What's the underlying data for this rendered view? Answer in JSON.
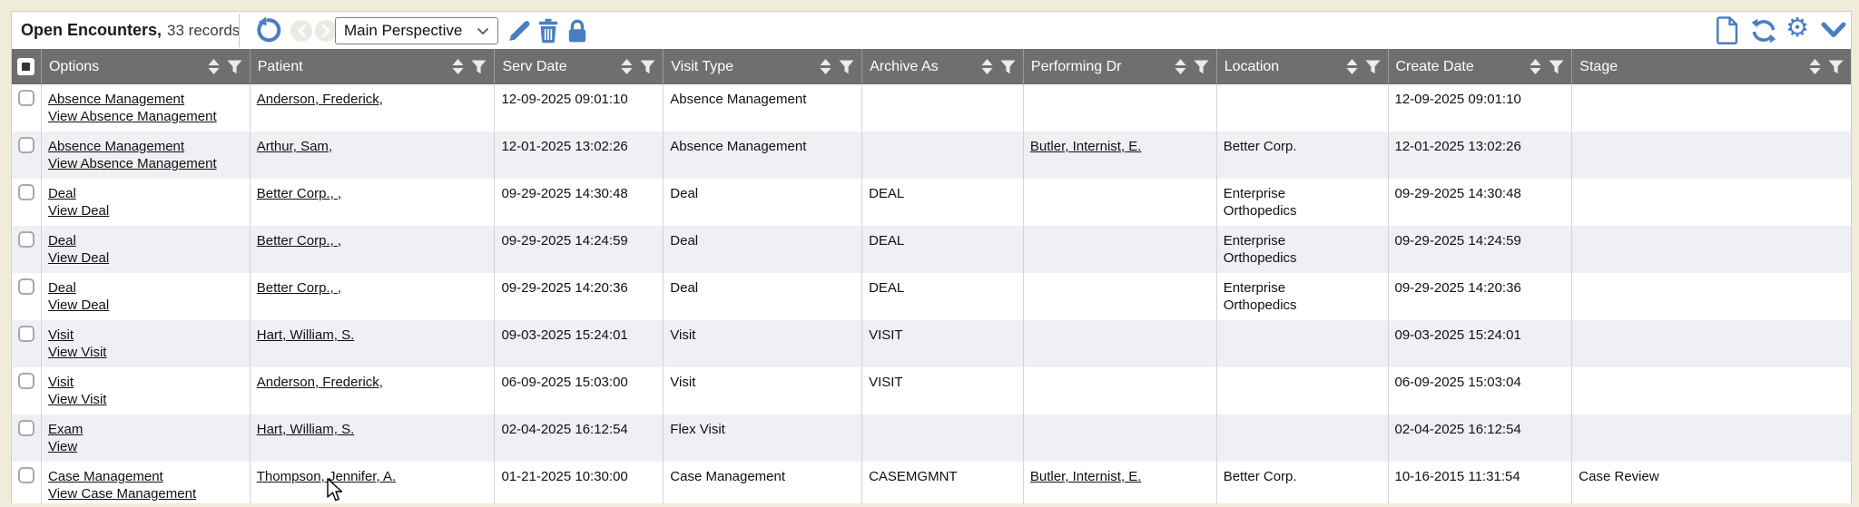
{
  "toolbar": {
    "title": "Open Encounters,",
    "record_count": "33 records",
    "perspective_value": "Main Perspective",
    "left_icon_names": [
      "undo-icon",
      "prev-icon",
      "next-icon"
    ],
    "action_icon_names": [
      "edit-pencil-icon",
      "trash-icon",
      "lock-icon"
    ],
    "right_icon_names": [
      "new-document-icon",
      "refresh-icon",
      "gear-icon",
      "chevron-down-icon"
    ],
    "select_chevron_icon": "chevron-down-small-icon"
  },
  "colors": {
    "accent_blue": "#4a7ec2",
    "header_gray": "#6f6f6f",
    "zebra_row": "#eef0f4",
    "page_background": "#f1ecda"
  },
  "table": {
    "header_icon_names": [
      "sort-icon",
      "filter-icon"
    ],
    "select_all_checkbox": "indeterminate",
    "columns": [
      "Options",
      "Patient",
      "Serv Date",
      "Visit Type",
      "Archive As",
      "Performing Dr",
      "Location",
      "Create Date",
      "Stage"
    ],
    "rows": [
      {
        "options": [
          "Absence Management",
          "View Absence Management"
        ],
        "patient": "Anderson, Frederick,",
        "serv_date": "12-09-2025 09:01:10",
        "visit_type": "Absence Management",
        "archive_as": "",
        "performing_dr": "",
        "location": "",
        "create_date": "12-09-2025 09:01:10",
        "stage": ""
      },
      {
        "options": [
          "Absence Management",
          "View Absence Management"
        ],
        "patient": "Arthur, Sam,",
        "serv_date": "12-01-2025 13:02:26",
        "visit_type": "Absence Management",
        "archive_as": "",
        "performing_dr": "Butler, Internist, E.",
        "location": "Better Corp.",
        "create_date": "12-01-2025 13:02:26",
        "stage": ""
      },
      {
        "options": [
          "Deal",
          "View Deal"
        ],
        "patient": "Better Corp., ,",
        "serv_date": "09-29-2025 14:30:48",
        "visit_type": "Deal",
        "archive_as": "DEAL",
        "performing_dr": "",
        "location": "Enterprise Orthopedics",
        "create_date": "09-29-2025 14:30:48",
        "stage": ""
      },
      {
        "options": [
          "Deal",
          "View Deal"
        ],
        "patient": "Better Corp., ,",
        "serv_date": "09-29-2025 14:24:59",
        "visit_type": "Deal",
        "archive_as": "DEAL",
        "performing_dr": "",
        "location": "Enterprise Orthopedics",
        "create_date": "09-29-2025 14:24:59",
        "stage": ""
      },
      {
        "options": [
          "Deal",
          "View Deal"
        ],
        "patient": "Better Corp., ,",
        "serv_date": "09-29-2025 14:20:36",
        "visit_type": "Deal",
        "archive_as": "DEAL",
        "performing_dr": "",
        "location": "Enterprise Orthopedics",
        "create_date": "09-29-2025 14:20:36",
        "stage": ""
      },
      {
        "options": [
          "Visit",
          "View Visit"
        ],
        "patient": "Hart, William, S.",
        "serv_date": "09-03-2025 15:24:01",
        "visit_type": "Visit",
        "archive_as": "VISIT",
        "performing_dr": "",
        "location": "",
        "create_date": "09-03-2025 15:24:01",
        "stage": ""
      },
      {
        "options": [
          "Visit",
          "View Visit"
        ],
        "patient": "Anderson, Frederick,",
        "serv_date": "06-09-2025 15:03:00",
        "visit_type": "Visit",
        "archive_as": "VISIT",
        "performing_dr": "",
        "location": "",
        "create_date": "06-09-2025 15:03:04",
        "stage": ""
      },
      {
        "options": [
          "Exam",
          "View"
        ],
        "patient": "Hart, William, S.",
        "serv_date": "02-04-2025 16:12:54",
        "visit_type": "Flex Visit",
        "archive_as": "",
        "performing_dr": "",
        "location": "",
        "create_date": "02-04-2025 16:12:54",
        "stage": ""
      },
      {
        "options": [
          "Case Management",
          "View Case Management"
        ],
        "patient": "Thompson, Jennifer, A.",
        "serv_date": "01-21-2025 10:30:00",
        "visit_type": "Case Management",
        "archive_as": "CASEMGMNT",
        "performing_dr": "Butler, Internist, E.",
        "location": "Better Corp.",
        "create_date": "10-16-2015 11:31:54",
        "stage": "Case Review"
      }
    ]
  }
}
